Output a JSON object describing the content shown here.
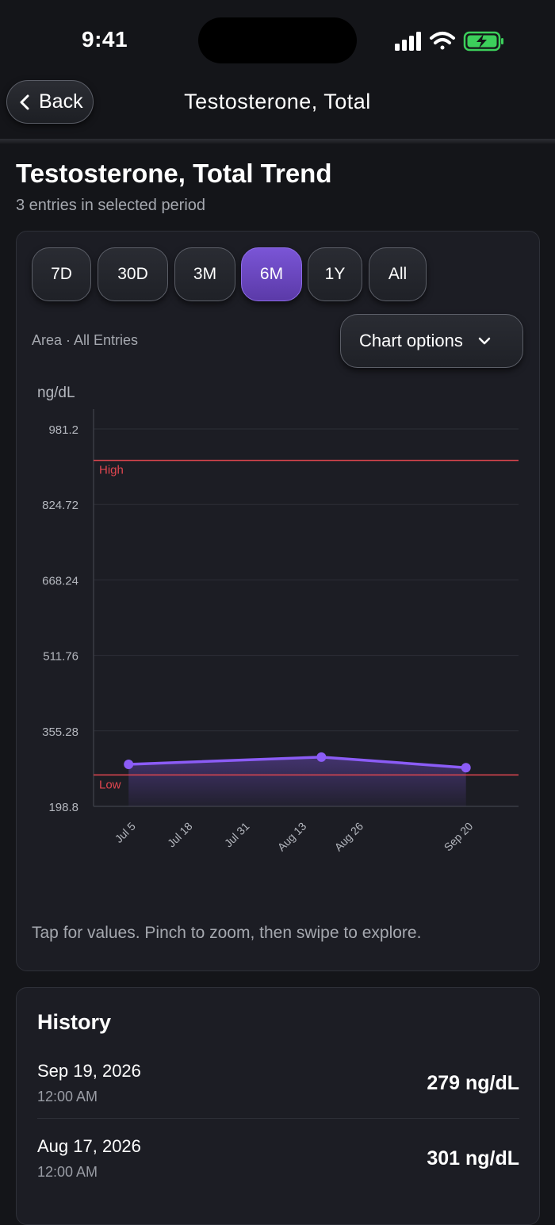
{
  "status_bar": {
    "time": "9:41"
  },
  "nav": {
    "back_label": "Back",
    "title": "Testosterone, Total"
  },
  "page": {
    "title": "Testosterone, Total Trend",
    "subtitle": "3 entries in selected period"
  },
  "chart_card": {
    "ranges": [
      "7D",
      "30D",
      "3M",
      "6M",
      "1Y",
      "All"
    ],
    "active_range": "6M",
    "meta": "Area · All Entries",
    "options_label": "Chart options",
    "hint": "Tap for values. Pinch to zoom, then swipe to explore."
  },
  "chart_data": {
    "type": "area",
    "ylabel": "ng/dL",
    "ylim": [
      198.8,
      981.2
    ],
    "y_ticks": [
      "981.2",
      "824.72",
      "668.24",
      "511.76",
      "355.28",
      "198.8"
    ],
    "x_ticks": [
      "Jul 5",
      "Jul 18",
      "Jul 31",
      "Aug 13",
      "Aug 26",
      "Sep 20"
    ],
    "x_range": [
      "2026-06-26",
      "2026-10-01"
    ],
    "x_tick_dates": [
      "2026-07-05",
      "2026-07-18",
      "2026-07-31",
      "2026-08-13",
      "2026-08-26",
      "2026-09-20"
    ],
    "points": [
      {
        "x": "2026-07-04",
        "y": 286
      },
      {
        "x": "2026-08-17",
        "y": 301
      },
      {
        "x": "2026-09-19",
        "y": 279
      }
    ],
    "reference_lines": [
      {
        "label": "High",
        "y": 916,
        "color": "#e0464f"
      },
      {
        "label": "Low",
        "y": 264,
        "color": "#e0464f"
      }
    ],
    "series_color": "#8b5cf6",
    "grid": true
  },
  "history": {
    "title": "History",
    "entries": [
      {
        "date": "Sep 19, 2026",
        "time": "12:00 AM",
        "value": "279 ng/dL"
      },
      {
        "date": "Aug 17, 2026",
        "time": "12:00 AM",
        "value": "301 ng/dL"
      }
    ]
  }
}
